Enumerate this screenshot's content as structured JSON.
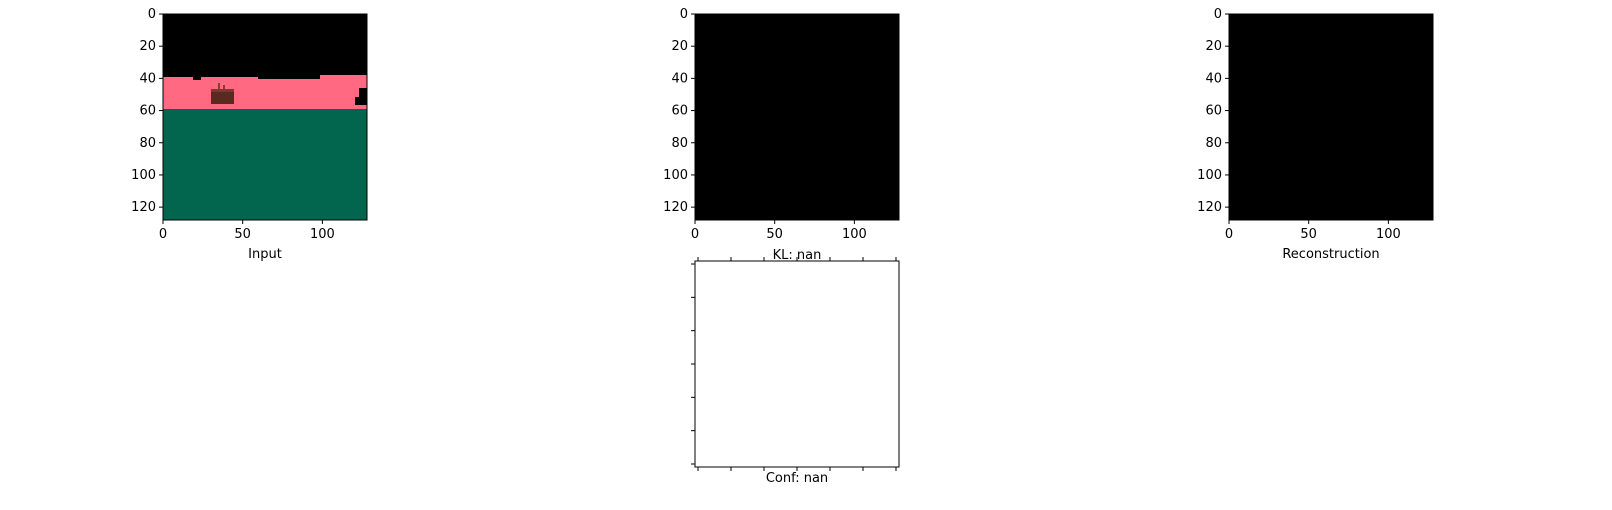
{
  "chart_data": [
    {
      "type": "image",
      "panel": "input",
      "xlabel": "Input",
      "x_ticks": [
        0,
        50,
        100
      ],
      "y_ticks": [
        0,
        20,
        40,
        60,
        80,
        100,
        120
      ],
      "xlim": [
        0,
        128
      ],
      "ylim": [
        128,
        0
      ],
      "regions": [
        {
          "name": "top",
          "color": "#000000",
          "y_from": 0,
          "y_to": 39
        },
        {
          "name": "middle-band",
          "color": "#ff6982",
          "y_from": 39,
          "y_to": 59
        },
        {
          "name": "bottom",
          "color": "#02664e",
          "y_from": 59,
          "y_to": 128
        },
        {
          "name": "object",
          "color": "#5a2a22",
          "x_from": 30,
          "x_to": 44,
          "y_from": 47,
          "y_to": 56
        }
      ]
    },
    {
      "type": "image",
      "panel": "kl",
      "xlabel": "KL: nan",
      "x_ticks": [
        0,
        50,
        100
      ],
      "y_ticks": [
        0,
        20,
        40,
        60,
        80,
        100,
        120
      ],
      "xlim": [
        0,
        128
      ],
      "ylim": [
        128,
        0
      ],
      "fill_color": "#000000"
    },
    {
      "type": "image",
      "panel": "reconstruction",
      "xlabel": "Reconstruction",
      "x_ticks": [
        0,
        50,
        100
      ],
      "y_ticks": [
        0,
        20,
        40,
        60,
        80,
        100,
        120
      ],
      "xlim": [
        0,
        128
      ],
      "ylim": [
        128,
        0
      ],
      "fill_color": "#000000"
    },
    {
      "type": "image",
      "panel": "conf",
      "xlabel": "Conf: nan",
      "x_tick_count": 7,
      "y_tick_count": 7,
      "fill_color": "#ffffff"
    }
  ]
}
